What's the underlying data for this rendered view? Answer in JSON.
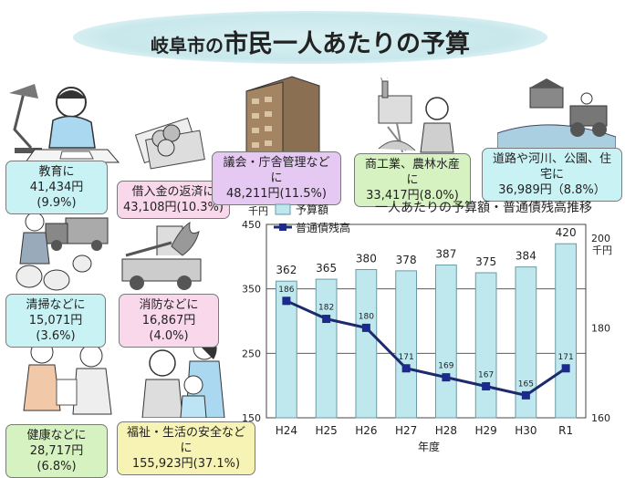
{
  "title": {
    "prefix": "岐阜市の",
    "main": "市民一人あたりの予算"
  },
  "categories": [
    {
      "name": "教育に",
      "amount": "41,434円(9.9%)"
    },
    {
      "name": "借入金の返済に",
      "amount": "43,108円(10.3%)"
    },
    {
      "name": "議会・庁舎管理などに",
      "amount": "48,211円(11.5%)"
    },
    {
      "name": "商工業、農林水産に",
      "amount": "33,417円(8.0%)"
    },
    {
      "name": "道路や河川、公園、住宅に",
      "amount": "36,989円（8.8%）"
    },
    {
      "name": "清掃などに",
      "amount": "15,071円(3.6%)"
    },
    {
      "name": "消防などに",
      "amount": "16,867円(4.0%)"
    },
    {
      "name": "健康などに",
      "amount": "28,717円(6.8%)"
    },
    {
      "name": "福祉・生活の安全などに",
      "amount": "155,923円(37.1%)"
    }
  ],
  "colors": {
    "bar_fill": "#bfe8ee",
    "bar_stroke": "#6a9aa4",
    "line": "#1c2a6e",
    "marker": "#1c2a8e"
  },
  "chart_data": {
    "type": "bar",
    "title": "一人あたりの予算額・普通債残高推移",
    "xlabel": "年度",
    "categories": [
      "H24",
      "H25",
      "H26",
      "H27",
      "H28",
      "H29",
      "H30",
      "R1"
    ],
    "left_axis": {
      "unit": "千円",
      "ticks": [
        150,
        250,
        350,
        450
      ],
      "range": [
        150,
        450
      ]
    },
    "right_axis": {
      "unit": "千円",
      "ticks": [
        160,
        180,
        200
      ],
      "range": [
        160,
        203
      ]
    },
    "legend": {
      "position": "top-left"
    },
    "series": [
      {
        "name": "予算額",
        "type": "bar",
        "axis": "left",
        "values": [
          362,
          365,
          380,
          378,
          387,
          375,
          384,
          420
        ]
      },
      {
        "name": "普通債残高",
        "type": "line",
        "axis": "right",
        "values": [
          186,
          182,
          180,
          171,
          169,
          167,
          165,
          171
        ]
      }
    ]
  }
}
